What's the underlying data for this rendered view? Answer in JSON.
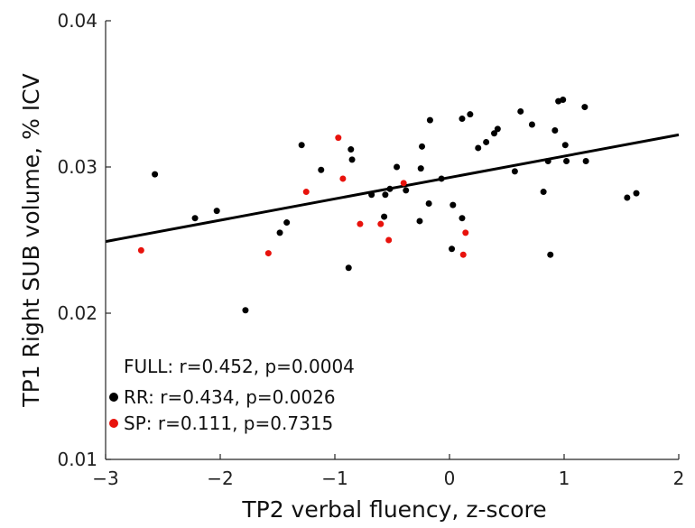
{
  "chart_data": {
    "type": "scatter",
    "title": "",
    "xlabel": "TP2 verbal fluency, z-score",
    "ylabel": "TP1 Right SUB volume, % ICV",
    "xlim": [
      -3,
      2
    ],
    "ylim": [
      0.01,
      0.04
    ],
    "x_ticks": [
      -3,
      -2,
      -1,
      0,
      1,
      2
    ],
    "x_tick_labels": [
      "−3",
      "−2",
      "−1",
      "0",
      "1",
      "2"
    ],
    "y_ticks": [
      0.01,
      0.02,
      0.03,
      0.04
    ],
    "y_tick_labels": [
      "0.01",
      "0.02",
      "0.03",
      "0.04"
    ],
    "grid": false,
    "series": [
      {
        "name": "RR",
        "color": "#000000",
        "points": [
          [
            -2.57,
            0.0295
          ],
          [
            -2.22,
            0.0265
          ],
          [
            -2.03,
            0.027
          ],
          [
            -1.78,
            0.0202
          ],
          [
            -1.48,
            0.0255
          ],
          [
            -1.42,
            0.0262
          ],
          [
            -1.29,
            0.0315
          ],
          [
            -1.12,
            0.0298
          ],
          [
            -0.88,
            0.0231
          ],
          [
            -0.86,
            0.0312
          ],
          [
            -0.85,
            0.0305
          ],
          [
            -0.68,
            0.0281
          ],
          [
            -0.57,
            0.0266
          ],
          [
            -0.56,
            0.0281
          ],
          [
            -0.52,
            0.0285
          ],
          [
            -0.46,
            0.03
          ],
          [
            -0.38,
            0.0284
          ],
          [
            -0.26,
            0.0263
          ],
          [
            -0.25,
            0.0299
          ],
          [
            -0.24,
            0.0314
          ],
          [
            -0.18,
            0.0275
          ],
          [
            -0.17,
            0.0332
          ],
          [
            -0.07,
            0.0292
          ],
          [
            0.02,
            0.0244
          ],
          [
            0.03,
            0.0274
          ],
          [
            0.11,
            0.0265
          ],
          [
            0.11,
            0.0333
          ],
          [
            0.18,
            0.0336
          ],
          [
            0.25,
            0.0313
          ],
          [
            0.32,
            0.0317
          ],
          [
            0.39,
            0.0323
          ],
          [
            0.42,
            0.0326
          ],
          [
            0.57,
            0.0297
          ],
          [
            0.62,
            0.0338
          ],
          [
            0.72,
            0.0329
          ],
          [
            0.82,
            0.0283
          ],
          [
            0.86,
            0.0304
          ],
          [
            0.88,
            0.024
          ],
          [
            0.92,
            0.0325
          ],
          [
            0.95,
            0.0345
          ],
          [
            0.99,
            0.0346
          ],
          [
            1.01,
            0.0315
          ],
          [
            1.02,
            0.0304
          ],
          [
            1.18,
            0.0341
          ],
          [
            1.19,
            0.0304
          ],
          [
            1.55,
            0.0279
          ],
          [
            1.63,
            0.0282
          ]
        ]
      },
      {
        "name": "SP",
        "color": "#e8120c",
        "points": [
          [
            -2.69,
            0.0243
          ],
          [
            -1.58,
            0.0241
          ],
          [
            -1.25,
            0.0283
          ],
          [
            -0.97,
            0.032
          ],
          [
            -0.93,
            0.0292
          ],
          [
            -0.78,
            0.0261
          ],
          [
            -0.6,
            0.0261
          ],
          [
            -0.53,
            0.025
          ],
          [
            -0.4,
            0.0289
          ],
          [
            0.12,
            0.024
          ],
          [
            0.14,
            0.0255
          ]
        ]
      }
    ],
    "fit_line": {
      "x": [
        -3,
        2
      ],
      "y": [
        0.0249,
        0.0322
      ],
      "color": "#000000"
    },
    "legend": {
      "placement": "bottom-left",
      "entries": [
        {
          "label": "FULL: r=0.452, p=0.0004",
          "marker": "none"
        },
        {
          "label": "RR: r=0.434, p=0.0026",
          "marker": "#000000"
        },
        {
          "label": "SP: r=0.111, p=0.7315",
          "marker": "#e8120c"
        }
      ]
    }
  }
}
